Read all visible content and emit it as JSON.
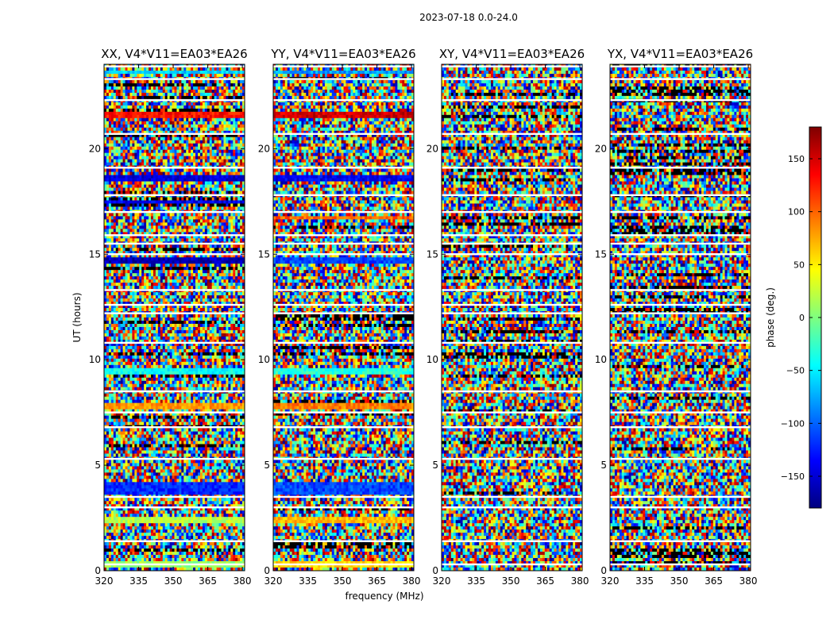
{
  "figure": {
    "suptitle": "2023-07-18 0.0-24.0",
    "xlabel": "frequency (MHz)",
    "ylabel": "UT (hours)",
    "colorbar": {
      "label": "phase (deg.)",
      "range": [
        -180,
        180
      ],
      "ticks": [
        -150,
        -100,
        -50,
        0,
        50,
        100,
        150
      ],
      "tick_labels": [
        "−150",
        "−100",
        "−50",
        "0",
        "50",
        "100",
        "150"
      ],
      "colormap": [
        "#00007f",
        "#0000ff",
        "#007fff",
        "#00ffff",
        "#7fff7f",
        "#ffff00",
        "#ff7f00",
        "#ff0000",
        "#7f0000"
      ]
    }
  },
  "chart_data": [
    {
      "type": "heatmap",
      "title": "XX, V4*V11=EA03*EA26",
      "xlim": [
        320,
        381
      ],
      "ylim": [
        0,
        24
      ],
      "x_ticks": [
        320,
        335,
        350,
        365,
        380
      ],
      "y_ticks": [
        0,
        5,
        10,
        15,
        20
      ],
      "z": "phase (deg.), noisy per-pixel phase with horizontal flagged (white) time rows",
      "coherent_bands": [
        {
          "ut_start": 0.2,
          "ut_end": 0.5,
          "phase": 10
        },
        {
          "ut_start": 2.3,
          "ut_end": 2.5,
          "phase": 20
        },
        {
          "ut_start": 3.6,
          "ut_end": 4.2,
          "phase": -120
        },
        {
          "ut_start": 7.6,
          "ut_end": 8.0,
          "phase": 80
        },
        {
          "ut_start": 9.3,
          "ut_end": 9.6,
          "phase": -40
        },
        {
          "ut_start": 14.6,
          "ut_end": 14.9,
          "phase": -160
        },
        {
          "ut_start": 17.4,
          "ut_end": 17.6,
          "phase": -140
        },
        {
          "ut_start": 18.4,
          "ut_end": 18.7,
          "phase": -150
        },
        {
          "ut_start": 21.4,
          "ut_end": 21.8,
          "phase": 130
        },
        {
          "ut_start": 23.5,
          "ut_end": 23.7,
          "phase": -60
        }
      ],
      "flagged_rows_ut": [
        0.3,
        1.4,
        3.0,
        3.5,
        5.3,
        6.8,
        7.5,
        8.5,
        10.8,
        12.2,
        12.6,
        13.3,
        15.0,
        15.5,
        15.9,
        17.0,
        17.8,
        19.1,
        20.7,
        22.3,
        23.3,
        23.9
      ]
    },
    {
      "type": "heatmap",
      "title": "YY, V4*V11=EA03*EA26",
      "xlim": [
        320,
        381
      ],
      "ylim": [
        0,
        24
      ],
      "x_ticks": [
        320,
        335,
        350,
        365,
        380
      ],
      "y_ticks": [
        0,
        5,
        10,
        15,
        20
      ],
      "z": "phase (deg.), noisy per-pixel phase with horizontal flagged (white) time rows",
      "coherent_bands": [
        {
          "ut_start": 0.2,
          "ut_end": 0.5,
          "phase": 60
        },
        {
          "ut_start": 2.2,
          "ut_end": 2.5,
          "phase": 70
        },
        {
          "ut_start": 3.6,
          "ut_end": 4.2,
          "phase": -110
        },
        {
          "ut_start": 7.6,
          "ut_end": 8.0,
          "phase": 90
        },
        {
          "ut_start": 9.3,
          "ut_end": 9.6,
          "phase": -30
        },
        {
          "ut_start": 14.6,
          "ut_end": 14.9,
          "phase": -110
        },
        {
          "ut_start": 16.6,
          "ut_end": 16.8,
          "phase": 100
        },
        {
          "ut_start": 18.4,
          "ut_end": 18.7,
          "phase": -140
        },
        {
          "ut_start": 21.4,
          "ut_end": 21.8,
          "phase": 150
        },
        {
          "ut_start": 23.5,
          "ut_end": 23.7,
          "phase": -80
        }
      ],
      "flagged_rows_ut": [
        0.3,
        1.4,
        3.0,
        3.5,
        5.3,
        6.8,
        7.5,
        8.5,
        10.8,
        12.2,
        12.6,
        13.3,
        15.0,
        15.5,
        15.9,
        17.0,
        17.8,
        19.1,
        20.7,
        22.3,
        23.3,
        23.9
      ]
    },
    {
      "type": "heatmap",
      "title": "XY, V4*V11=EA03*EA26",
      "xlim": [
        320,
        381
      ],
      "ylim": [
        0,
        24
      ],
      "x_ticks": [
        320,
        335,
        350,
        365,
        380
      ],
      "y_ticks": [
        0,
        5,
        10,
        15,
        20
      ],
      "z": "phase (deg.), noisy per-pixel phase with horizontal flagged (white) time rows",
      "coherent_bands": [],
      "flagged_rows_ut": [
        0.3,
        1.4,
        3.0,
        3.5,
        5.3,
        6.8,
        7.5,
        8.5,
        10.8,
        12.2,
        12.6,
        13.3,
        15.0,
        15.5,
        15.9,
        17.0,
        17.8,
        19.1,
        20.7,
        22.3,
        23.3,
        23.9
      ]
    },
    {
      "type": "heatmap",
      "title": "YX, V4*V11=EA03*EA26",
      "xlim": [
        320,
        381
      ],
      "ylim": [
        0,
        24
      ],
      "x_ticks": [
        320,
        335,
        350,
        365,
        380
      ],
      "y_ticks": [
        0,
        5,
        10,
        15,
        20
      ],
      "z": "phase (deg.), noisy per-pixel phase with horizontal flagged (white) time rows",
      "coherent_bands": [],
      "flagged_rows_ut": [
        0.3,
        1.4,
        3.0,
        3.5,
        5.3,
        6.8,
        7.5,
        8.5,
        10.8,
        12.2,
        12.6,
        13.3,
        15.0,
        15.5,
        15.9,
        17.0,
        17.8,
        19.1,
        20.7,
        22.3,
        23.3,
        23.9
      ]
    }
  ]
}
